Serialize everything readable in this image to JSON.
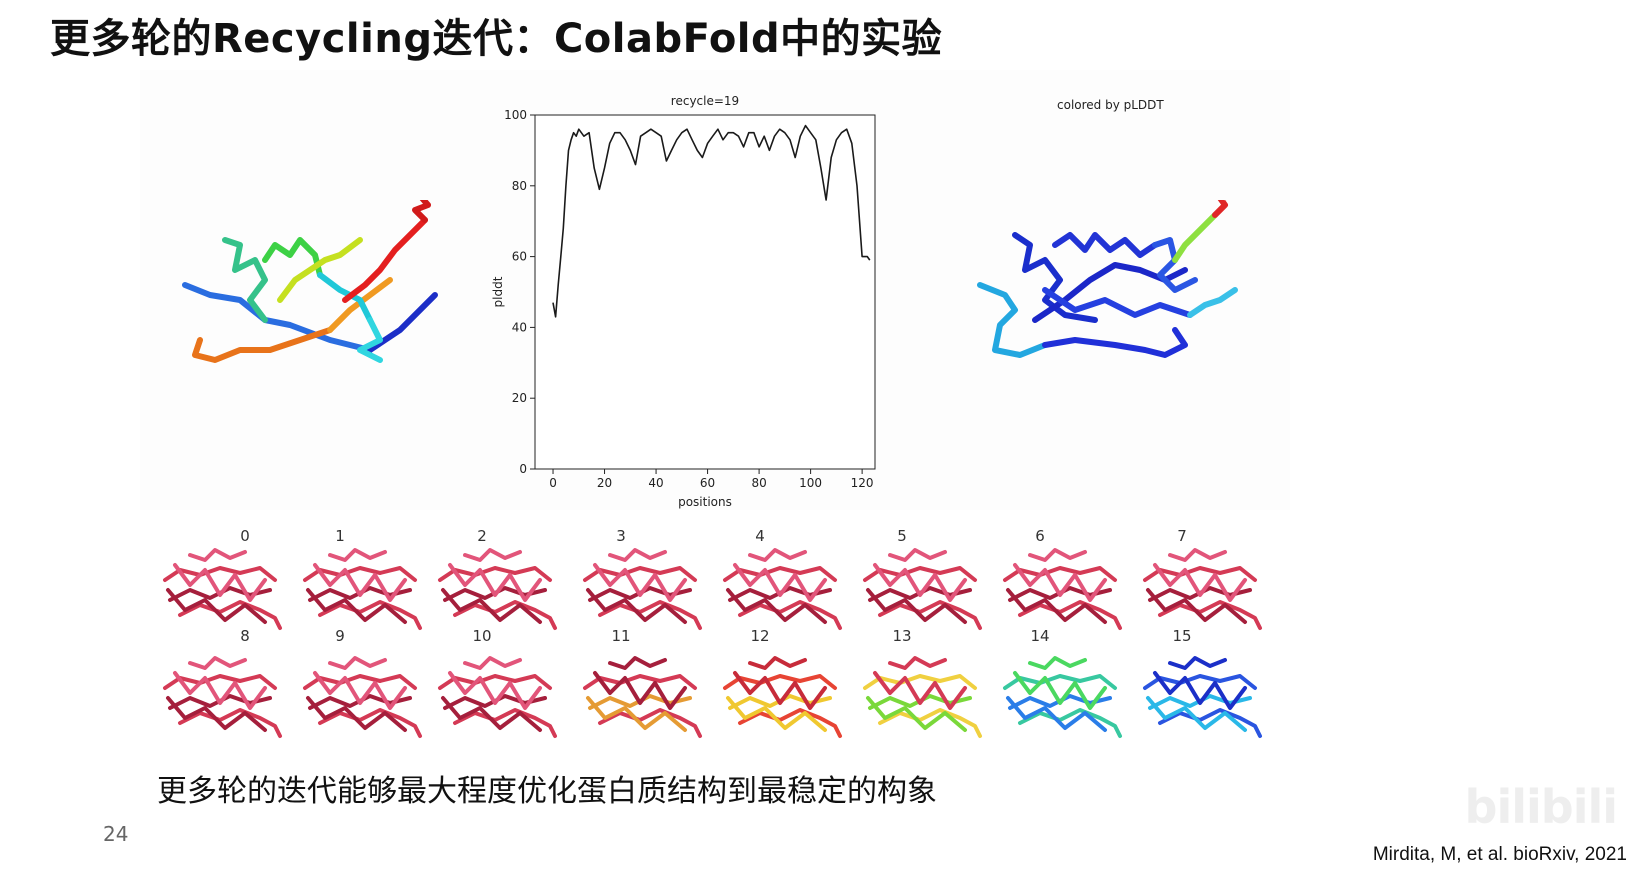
{
  "slide": {
    "title": "更多轮的Recycling迭代：ColabFold中的实验",
    "caption": "更多轮的迭代能够最大程度优化蛋白质结构到最稳定的构象",
    "page_number": "24",
    "citation": "Mirdita, M, et al. bioRxiv, 2021",
    "watermark": "bilibili"
  },
  "structure_right": {
    "label": "colored by pLDDT"
  },
  "thumbnails": {
    "labels": [
      "0",
      "1",
      "2",
      "3",
      "4",
      "5",
      "6",
      "7",
      "8",
      "9",
      "10",
      "11",
      "12",
      "13",
      "14",
      "15"
    ]
  },
  "chart_data": {
    "type": "line",
    "title": "recycle=19",
    "xlabel": "positions",
    "ylabel": "plddt",
    "xlim": [
      -7,
      125
    ],
    "ylim": [
      0,
      100
    ],
    "xticks": [
      0,
      20,
      40,
      60,
      80,
      100,
      120
    ],
    "yticks": [
      0,
      20,
      40,
      60,
      80,
      100
    ],
    "x": [
      0,
      1,
      2,
      3,
      4,
      5,
      6,
      7,
      8,
      9,
      10,
      12,
      14,
      16,
      18,
      20,
      22,
      24,
      26,
      28,
      30,
      32,
      34,
      36,
      38,
      40,
      42,
      44,
      46,
      48,
      50,
      52,
      54,
      56,
      58,
      60,
      62,
      64,
      66,
      68,
      70,
      72,
      74,
      76,
      78,
      80,
      82,
      84,
      86,
      88,
      90,
      92,
      94,
      96,
      98,
      100,
      102,
      104,
      106,
      108,
      110,
      112,
      114,
      116,
      118,
      120,
      122,
      123
    ],
    "y": [
      47,
      43,
      52,
      60,
      68,
      80,
      90,
      93,
      95,
      94,
      96,
      94,
      95,
      85,
      79,
      85,
      92,
      95,
      95,
      93,
      90,
      86,
      94,
      95,
      96,
      95,
      94,
      87,
      90,
      93,
      95,
      96,
      93,
      90,
      88,
      92,
      94,
      96,
      93,
      95,
      95,
      94,
      91,
      95,
      95,
      91,
      94,
      90,
      94,
      96,
      95,
      93,
      88,
      94,
      97,
      95,
      93,
      85,
      76,
      88,
      93,
      95,
      96,
      92,
      80,
      60,
      60,
      59
    ],
    "grid": false,
    "color": "#1a1a1a"
  },
  "colors": {
    "thumb_red": "#d43a55",
    "thumb_dark": "#a51f3c"
  }
}
